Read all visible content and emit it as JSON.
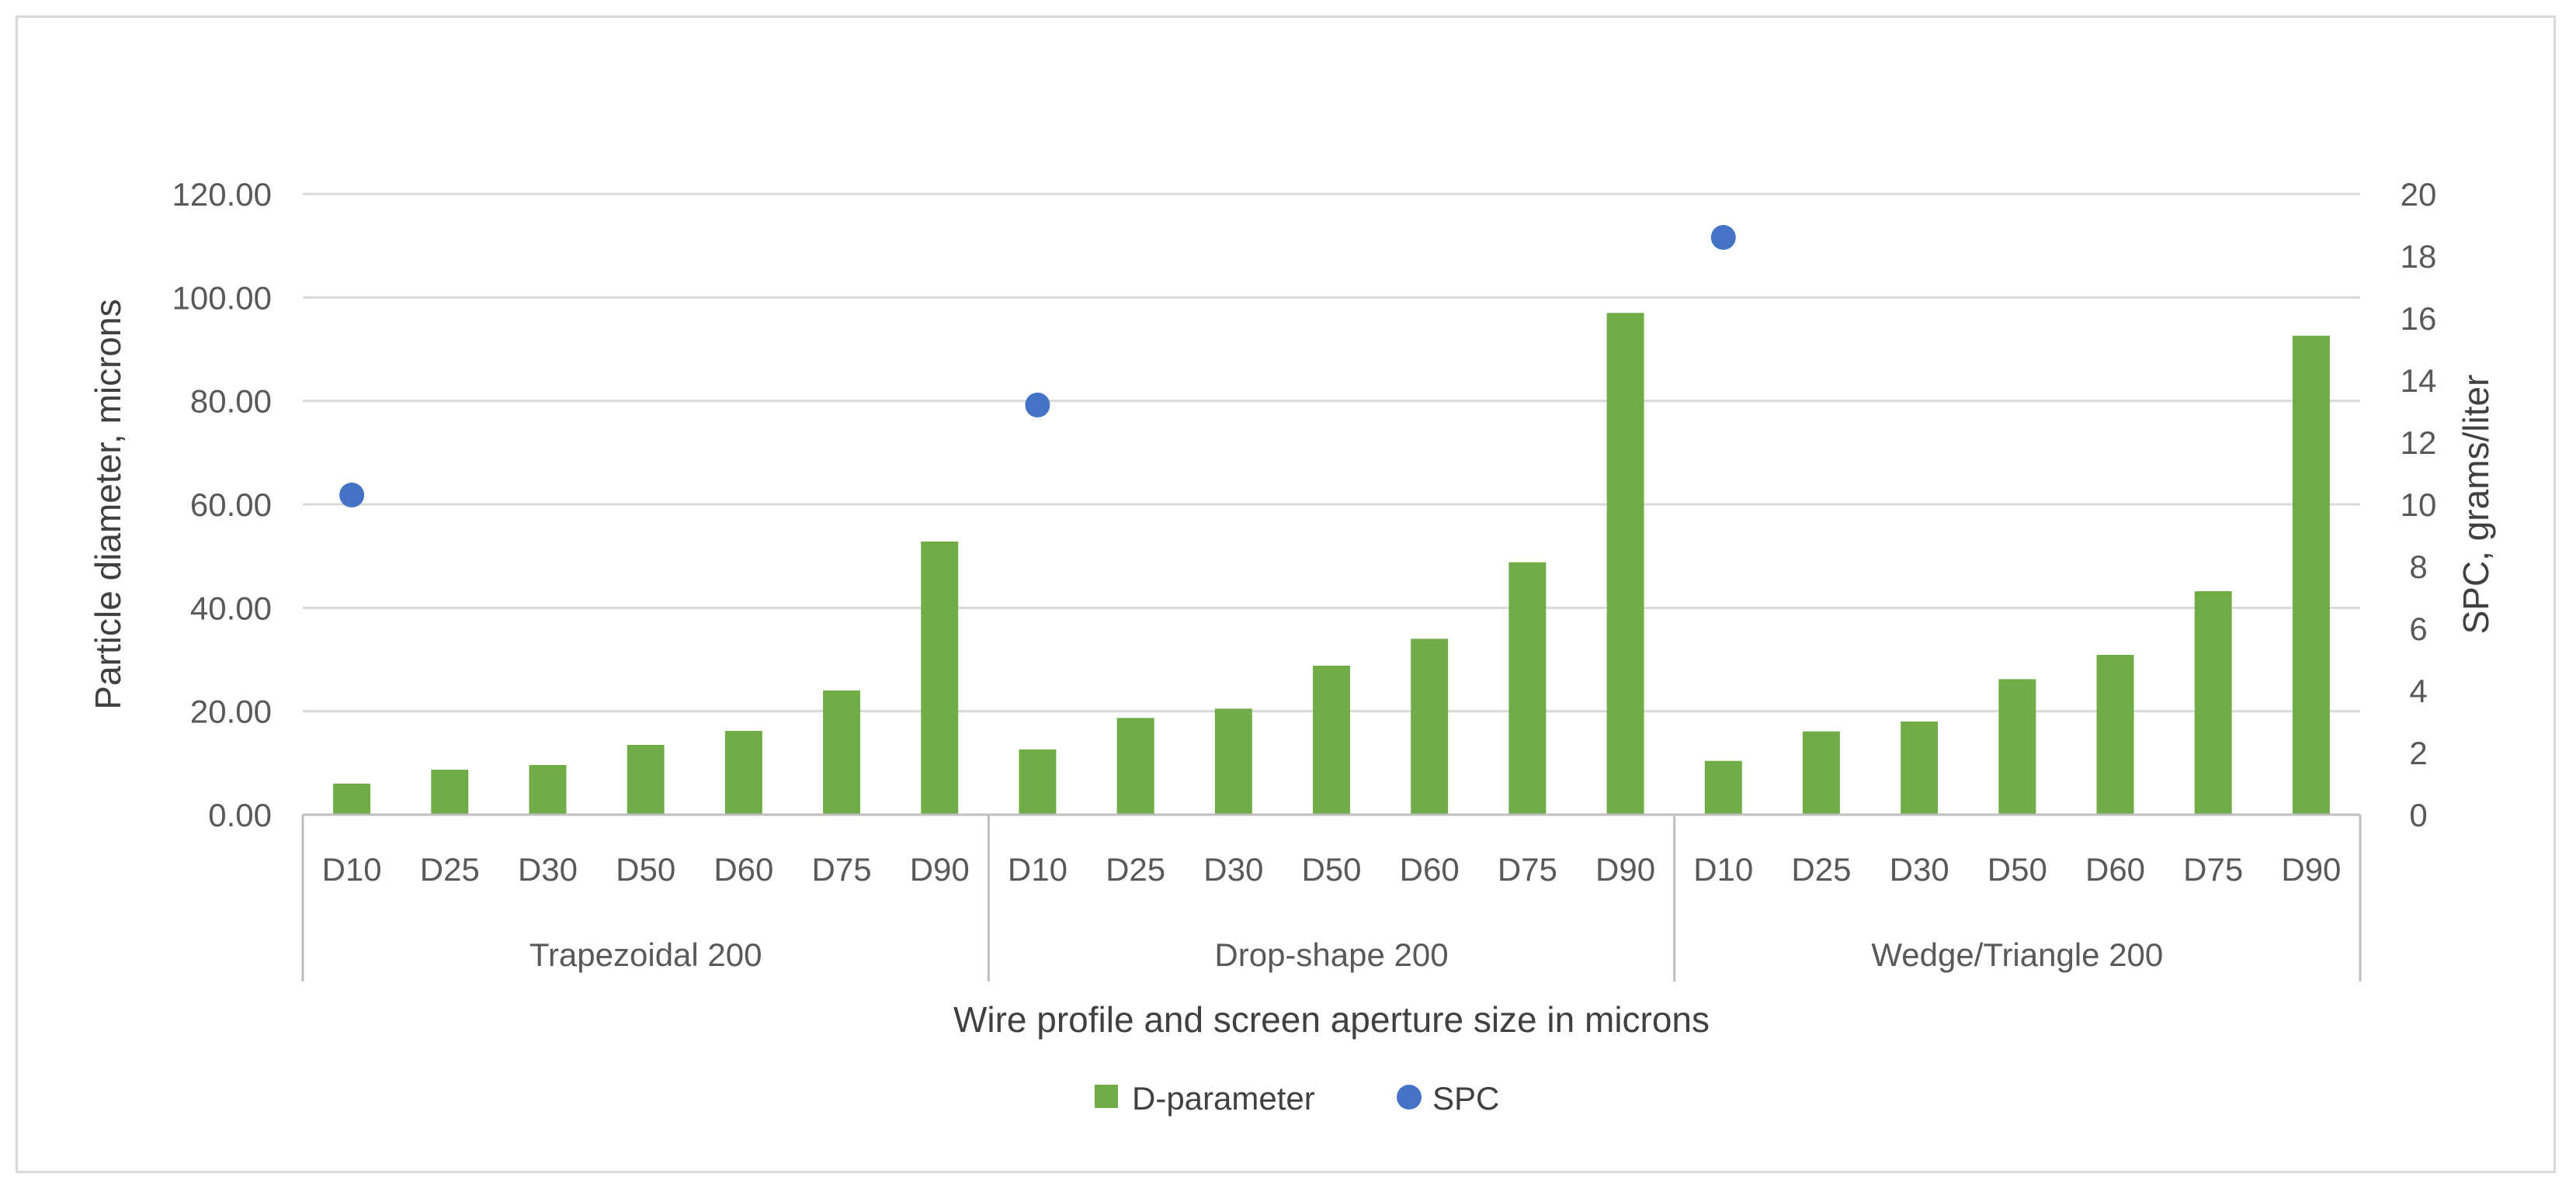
{
  "chart_data": {
    "type": "bar",
    "title": "",
    "xlabel": "Wire profile and screen aperture size in microns",
    "ylabel": "Particle diameter, microns",
    "y2label": "SPC, grams/liter",
    "ylim": [
      0,
      120
    ],
    "yticks": [
      "0.00",
      "20.00",
      "40.00",
      "60.00",
      "80.00",
      "100.00",
      "120.00"
    ],
    "y2lim": [
      0,
      20
    ],
    "y2ticks": [
      "0",
      "2",
      "4",
      "6",
      "8",
      "10",
      "12",
      "14",
      "16",
      "18",
      "20"
    ],
    "groups": [
      {
        "label": "Trapezoidal 200",
        "categories": [
          "D10",
          "D25",
          "D30",
          "D50",
          "D60",
          "D75",
          "D90"
        ],
        "d_parameter": [
          6.0,
          8.7,
          9.6,
          13.5,
          16.2,
          24.0,
          52.8
        ],
        "spc": [
          10.3,
          null,
          null,
          null,
          null,
          null,
          null
        ]
      },
      {
        "label": "Drop-shape 200",
        "categories": [
          "D10",
          "D25",
          "D30",
          "D50",
          "D60",
          "D75",
          "D90"
        ],
        "d_parameter": [
          12.6,
          18.7,
          20.5,
          28.8,
          34.0,
          48.8,
          97.0
        ],
        "spc": [
          13.2,
          null,
          null,
          null,
          null,
          null,
          null
        ]
      },
      {
        "label": "Wedge/Triangle 200",
        "categories": [
          "D10",
          "D25",
          "D30",
          "D50",
          "D60",
          "D75",
          "D90"
        ],
        "d_parameter": [
          10.4,
          16.1,
          18.0,
          26.2,
          30.9,
          43.2,
          92.6
        ],
        "spc": [
          18.6,
          null,
          null,
          null,
          null,
          null,
          null
        ]
      }
    ],
    "series": [
      {
        "name": "D-parameter",
        "type": "bar",
        "axis": "left",
        "color": "#70ad47"
      },
      {
        "name": "SPC",
        "type": "scatter",
        "axis": "right",
        "color": "#4472c4"
      }
    ],
    "grid": true,
    "legend_position": "bottom-center"
  }
}
